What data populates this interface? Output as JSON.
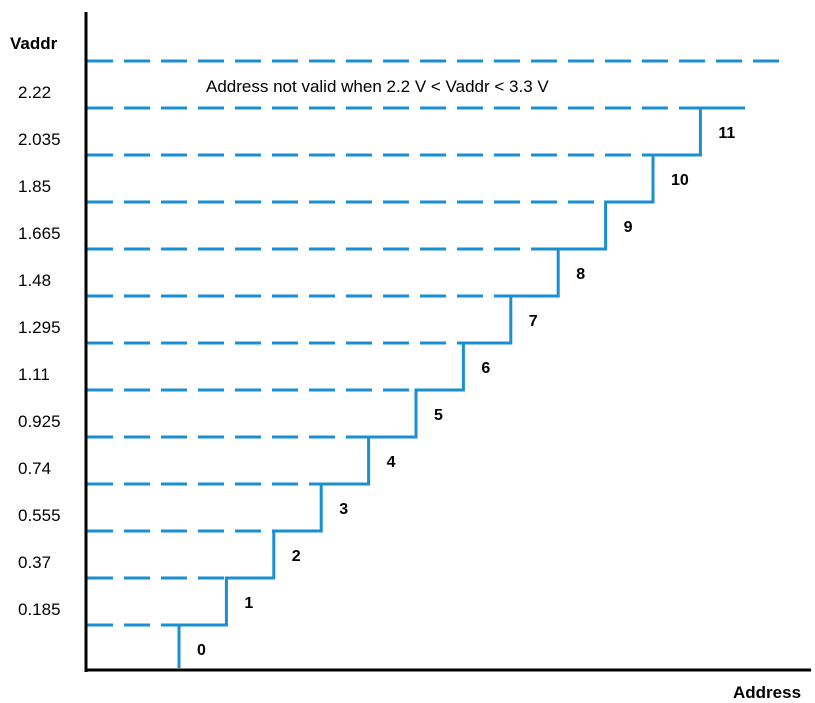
{
  "chart_data": {
    "type": "line",
    "ylabel": "Vaddr",
    "xlabel": "Address",
    "annotation": "Address not valid when 2.2 V < Vaddr < 3.3 V",
    "thresholds": [
      "0.185",
      "0.37",
      "0.555",
      "0.74",
      "0.925",
      "1.11",
      "1.295",
      "1.48",
      "1.665",
      "1.85",
      "2.035",
      "2.22"
    ],
    "top_line": "3.3",
    "series": [
      {
        "x": [
          0,
          1,
          2,
          3,
          4,
          5,
          6,
          7,
          8,
          9,
          10,
          11
        ],
        "y": [
          0.185,
          0.37,
          0.555,
          0.74,
          0.925,
          1.11,
          1.295,
          1.48,
          1.665,
          1.85,
          2.035,
          2.22
        ]
      }
    ],
    "step_labels": [
      "0",
      "1",
      "2",
      "3",
      "4",
      "5",
      "6",
      "7",
      "8",
      "9",
      "10",
      "11"
    ],
    "line_color": "#1a8fd1",
    "axis_color": "#000000"
  }
}
